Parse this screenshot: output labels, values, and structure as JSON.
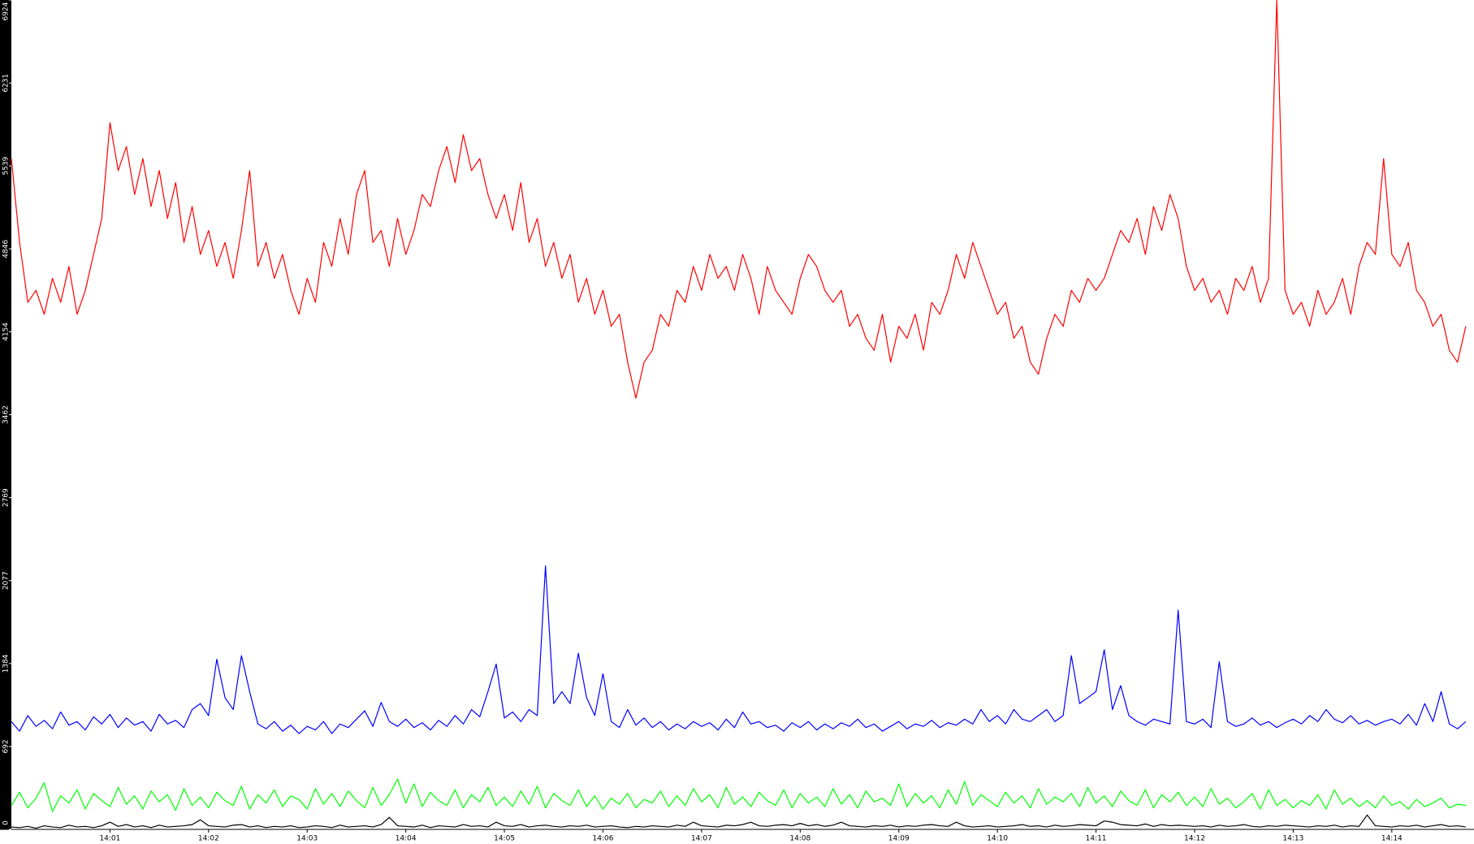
{
  "chart_data": {
    "type": "line",
    "xlim": [
      0,
      178
    ],
    "xticks": [
      {
        "value": 12,
        "label": "14:01"
      },
      {
        "value": 24,
        "label": "14:02"
      },
      {
        "value": 36,
        "label": "14:03"
      },
      {
        "value": 48,
        "label": "14:04"
      },
      {
        "value": 60,
        "label": "14:05"
      },
      {
        "value": 72,
        "label": "14:06"
      },
      {
        "value": 84,
        "label": "14:07"
      },
      {
        "value": 96,
        "label": "14:08"
      },
      {
        "value": 108,
        "label": "14:09"
      },
      {
        "value": 120,
        "label": "14:10"
      },
      {
        "value": 132,
        "label": "14:11"
      },
      {
        "value": 144,
        "label": "14:12"
      },
      {
        "value": 156,
        "label": "14:13"
      },
      {
        "value": 168,
        "label": "14:14"
      }
    ],
    "ylim": [
      0,
      6924
    ],
    "yticks": [
      0,
      692,
      1384,
      2077,
      2769,
      3462,
      4154,
      4846,
      5539,
      6231,
      6924
    ],
    "grid": false,
    "series": [
      {
        "color": "#ff0000",
        "values": [
          5600,
          4900,
          4400,
          4500,
          4300,
          4600,
          4400,
          4700,
          4300,
          4500,
          4800,
          5100,
          5900,
          5500,
          5700,
          5300,
          5600,
          5200,
          5500,
          5100,
          5400,
          4900,
          5200,
          4800,
          5000,
          4700,
          4900,
          4600,
          5000,
          5500,
          4700,
          4900,
          4600,
          4800,
          4500,
          4300,
          4600,
          4400,
          4900,
          4700,
          5100,
          4800,
          5300,
          5500,
          4900,
          5000,
          4700,
          5100,
          4800,
          5000,
          5300,
          5200,
          5500,
          5700,
          5400,
          5800,
          5500,
          5600,
          5300,
          5100,
          5300,
          5000,
          5400,
          4900,
          5100,
          4700,
          4900,
          4600,
          4800,
          4400,
          4600,
          4300,
          4500,
          4200,
          4300,
          3900,
          3600,
          3900,
          4000,
          4300,
          4200,
          4500,
          4400,
          4700,
          4500,
          4800,
          4600,
          4700,
          4500,
          4800,
          4600,
          4300,
          4700,
          4500,
          4400,
          4300,
          4600,
          4800,
          4700,
          4500,
          4400,
          4500,
          4200,
          4300,
          4100,
          4000,
          4300,
          3900,
          4200,
          4100,
          4300,
          4000,
          4400,
          4300,
          4500,
          4800,
          4600,
          4900,
          4700,
          4500,
          4300,
          4400,
          4100,
          4200,
          3900,
          3800,
          4100,
          4300,
          4200,
          4500,
          4400,
          4600,
          4500,
          4600,
          4800,
          5000,
          4900,
          5100,
          4800,
          5200,
          5000,
          5300,
          5100,
          4700,
          4500,
          4600,
          4400,
          4500,
          4300,
          4600,
          4500,
          4700,
          4400,
          4600,
          6924,
          4500,
          4300,
          4400,
          4200,
          4500,
          4300,
          4400,
          4600,
          4300,
          4700,
          4900,
          4800,
          5600,
          4800,
          4700,
          4900,
          4500,
          4400,
          4200,
          4300,
          4000,
          3900,
          4200
        ]
      },
      {
        "color": "#0000ff",
        "values": [
          900,
          820,
          950,
          860,
          910,
          840,
          980,
          870,
          900,
          830,
          940,
          880,
          960,
          850,
          930,
          870,
          900,
          820,
          960,
          880,
          910,
          850,
          1000,
          1050,
          950,
          1420,
          1100,
          1000,
          1450,
          1150,
          880,
          840,
          900,
          820,
          870,
          800,
          860,
          830,
          900,
          800,
          880,
          850,
          920,
          990,
          860,
          1060,
          900,
          860,
          920,
          850,
          890,
          830,
          910,
          860,
          950,
          880,
          1000,
          940,
          1150,
          1380,
          930,
          980,
          900,
          1000,
          950,
          2200,
          1050,
          1150,
          1050,
          1470,
          1100,
          950,
          1300,
          900,
          850,
          1000,
          870,
          930,
          850,
          900,
          830,
          880,
          840,
          900,
          860,
          890,
          830,
          920,
          850,
          980,
          880,
          900,
          850,
          870,
          820,
          890,
          850,
          900,
          830,
          880,
          840,
          890,
          860,
          920,
          850,
          880,
          820,
          860,
          900,
          840,
          880,
          860,
          910,
          850,
          890,
          870,
          920,
          880,
          1000,
          900,
          950,
          880,
          1000,
          920,
          900,
          950,
          1000,
          900,
          950,
          1450,
          1050,
          1100,
          1150,
          1500,
          1000,
          1200,
          950,
          900,
          870,
          920,
          900,
          880,
          1830,
          900,
          880,
          920,
          850,
          1400,
          900,
          860,
          880,
          930,
          870,
          900,
          850,
          890,
          920,
          880,
          950,
          900,
          1000,
          920,
          890,
          950,
          880,
          910,
          870,
          900,
          920,
          880,
          960,
          870,
          1050,
          900,
          1150,
          880,
          840,
          900
        ]
      },
      {
        "color": "#00ff00",
        "values": [
          200,
          310,
          180,
          260,
          390,
          150,
          280,
          220,
          330,
          170,
          300,
          240,
          190,
          350,
          210,
          280,
          170,
          320,
          230,
          290,
          160,
          340,
          200,
          270,
          180,
          310,
          240,
          200,
          360,
          170,
          290,
          220,
          330,
          190,
          280,
          250,
          170,
          340,
          210,
          300,
          190,
          320,
          240,
          180,
          350,
          200,
          290,
          420,
          220,
          380,
          190,
          310,
          240,
          200,
          330,
          180,
          290,
          230,
          350,
          200,
          270,
          190,
          320,
          210,
          360,
          180,
          300,
          240,
          200,
          330,
          190,
          280,
          170,
          260,
          210,
          300,
          180,
          250,
          220,
          320,
          190,
          280,
          200,
          340,
          230,
          290,
          180,
          350,
          210,
          270,
          190,
          310,
          240,
          200,
          330,
          180,
          300,
          220,
          270,
          190,
          340,
          210,
          290,
          180,
          320,
          230,
          260,
          200,
          380,
          190,
          300,
          220,
          280,
          180,
          330,
          210,
          400,
          200,
          290,
          240,
          190,
          310,
          220,
          280,
          180,
          340,
          210,
          270,
          230,
          300,
          190,
          350,
          220,
          280,
          190,
          320,
          240,
          200,
          330,
          180,
          290,
          230,
          310,
          200,
          270,
          190,
          340,
          210,
          260,
          180,
          230,
          300,
          170,
          330,
          200,
          250,
          180,
          240,
          200,
          290,
          170,
          330,
          210,
          260,
          190,
          240,
          180,
          280,
          200,
          230,
          170,
          250,
          190,
          220,
          260,
          180,
          210,
          200
        ]
      },
      {
        "color": "#000000",
        "values": [
          20,
          15,
          25,
          10,
          30,
          20,
          15,
          35,
          20,
          25,
          15,
          30,
          60,
          25,
          40,
          20,
          30,
          15,
          35,
          20,
          25,
          30,
          40,
          80,
          30,
          25,
          20,
          35,
          40,
          20,
          30,
          15,
          25,
          20,
          30,
          15,
          20,
          30,
          25,
          15,
          35,
          20,
          25,
          30,
          20,
          40,
          100,
          30,
          25,
          20,
          35,
          15,
          30,
          25,
          20,
          40,
          25,
          30,
          20,
          60,
          30,
          25,
          40,
          20,
          30,
          35,
          25,
          20,
          30,
          25,
          35,
          20,
          25,
          30,
          20,
          15,
          25,
          20,
          30,
          25,
          20,
          35,
          25,
          60,
          30,
          25,
          20,
          35,
          30,
          40,
          60,
          30,
          25,
          35,
          40,
          30,
          50,
          30,
          40,
          25,
          35,
          60,
          30,
          25,
          20,
          30,
          25,
          35,
          20,
          30,
          25,
          35,
          40,
          30,
          25,
          60,
          30,
          20,
          25,
          30,
          20,
          25,
          30,
          40,
          25,
          30,
          20,
          35,
          25,
          30,
          40,
          35,
          30,
          70,
          60,
          40,
          35,
          30,
          45,
          25,
          40,
          30,
          35,
          30,
          25,
          30,
          20,
          35,
          25,
          30,
          40,
          25,
          20,
          30,
          25,
          35,
          30,
          25,
          20,
          30,
          25,
          35,
          20,
          30,
          25,
          120,
          30,
          25,
          20,
          30,
          25,
          35,
          20,
          30,
          40,
          25,
          30,
          20
        ]
      }
    ]
  }
}
